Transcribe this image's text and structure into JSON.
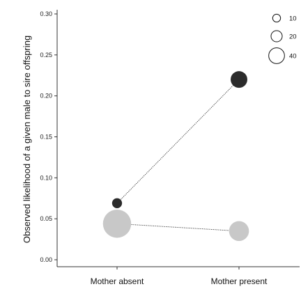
{
  "chart_data": {
    "type": "scatter",
    "title": "",
    "xlabel": "",
    "ylabel": "Observed likelihood of a given male to sire offspring",
    "categories": [
      "Mother absent",
      "Mother present"
    ],
    "ylim": [
      0,
      0.3
    ],
    "y_ticks": [
      "0.00",
      "0.05",
      "0.10",
      "0.15",
      "0.20",
      "0.25",
      "0.30"
    ],
    "grid": false,
    "legend_position": "top-right",
    "size_legend": {
      "values": [
        10,
        20,
        40
      ],
      "labels": [
        "10",
        "20",
        "40"
      ]
    },
    "series": [
      {
        "color": "#2b2b2b",
        "line_style": "dotted",
        "values": [
          0.069,
          0.22
        ],
        "sizes": [
          5,
          14
        ]
      },
      {
        "color": "#c8c8c8",
        "line_style": "dotted",
        "values": [
          0.044,
          0.035
        ],
        "sizes": [
          40,
          20
        ]
      }
    ]
  }
}
